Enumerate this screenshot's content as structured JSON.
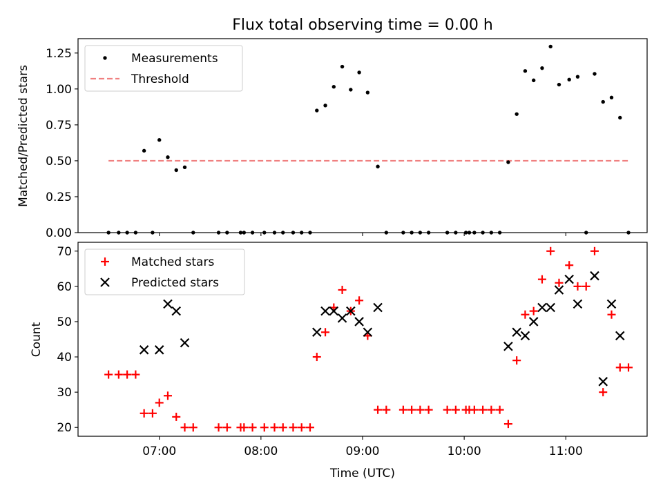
{
  "figure_title": "Flux total observing time = 0.00 h",
  "chart_data": [
    {
      "type": "scatter",
      "ylabel": "Matched/Predicted stars",
      "ylim": [
        0,
        1.35
      ],
      "xlim": [
        "06:12",
        "11:48"
      ],
      "yticks": [
        0.0,
        0.25,
        0.5,
        0.75,
        1.0,
        1.25
      ],
      "ytick_labels": [
        "0.00",
        "0.25",
        "0.50",
        "0.75",
        "1.00",
        "1.25"
      ],
      "legend_position": "upper-left",
      "colors": {
        "measurements": "#000000",
        "threshold": "#f08080"
      },
      "series": [
        {
          "name": "Measurements",
          "marker": "dot",
          "points": [
            [
              "06:30",
              0
            ],
            [
              "06:36",
              0
            ],
            [
              "06:41",
              0
            ],
            [
              "06:46",
              0
            ],
            [
              "06:51",
              0.57
            ],
            [
              "06:56",
              0
            ],
            [
              "07:00",
              0.645
            ],
            [
              "07:05",
              0.525
            ],
            [
              "07:10",
              0.435
            ],
            [
              "07:15",
              0.455
            ],
            [
              "07:20",
              0
            ],
            [
              "07:35",
              0
            ],
            [
              "07:40",
              0
            ],
            [
              "07:48",
              0
            ],
            [
              "07:50",
              0
            ],
            [
              "07:55",
              0
            ],
            [
              "08:02",
              0
            ],
            [
              "08:08",
              0
            ],
            [
              "08:13",
              0
            ],
            [
              "08:19",
              0
            ],
            [
              "08:24",
              0
            ],
            [
              "08:29",
              0
            ],
            [
              "08:33",
              0.85
            ],
            [
              "08:38",
              0.885
            ],
            [
              "08:43",
              1.015
            ],
            [
              "08:48",
              1.155
            ],
            [
              "08:53",
              0.995
            ],
            [
              "08:58",
              1.115
            ],
            [
              "09:03",
              0.975
            ],
            [
              "09:09",
              0.46
            ],
            [
              "09:14",
              0
            ],
            [
              "09:24",
              0
            ],
            [
              "09:29",
              0
            ],
            [
              "09:34",
              0
            ],
            [
              "09:39",
              0
            ],
            [
              "09:50",
              0
            ],
            [
              "09:55",
              0
            ],
            [
              "10:01",
              0
            ],
            [
              "10:03",
              0
            ],
            [
              "10:06",
              0
            ],
            [
              "10:11",
              0
            ],
            [
              "10:16",
              0
            ],
            [
              "10:21",
              0
            ],
            [
              "10:26",
              0.49
            ],
            [
              "10:31",
              0.825
            ],
            [
              "10:36",
              1.125
            ],
            [
              "10:41",
              1.06
            ],
            [
              "10:46",
              1.145
            ],
            [
              "10:51",
              1.295
            ],
            [
              "10:56",
              1.03
            ],
            [
              "11:02",
              1.065
            ],
            [
              "11:07",
              1.085
            ],
            [
              "11:12",
              0
            ],
            [
              "11:17",
              1.105
            ],
            [
              "11:22",
              0.91
            ],
            [
              "11:27",
              0.94
            ],
            [
              "11:32",
              0.8
            ],
            [
              "11:37",
              0
            ]
          ]
        },
        {
          "name": "Threshold",
          "marker": "dashed-line",
          "points": [
            [
              "06:30",
              0.5
            ],
            [
              "11:37",
              0.5
            ]
          ]
        }
      ]
    },
    {
      "type": "scatter",
      "xlabel": "Time (UTC)",
      "ylabel": "Count",
      "ylim": [
        17.5,
        72.5
      ],
      "xlim": [
        "06:12",
        "11:48"
      ],
      "yticks": [
        20,
        30,
        40,
        50,
        60,
        70
      ],
      "ytick_labels": [
        "20",
        "30",
        "40",
        "50",
        "60",
        "70"
      ],
      "xticks": [
        "07:00",
        "08:00",
        "09:00",
        "10:00",
        "11:00"
      ],
      "legend_position": "upper-left",
      "colors": {
        "matched": "#ff0000",
        "predicted": "#000000"
      },
      "series": [
        {
          "name": "Matched stars",
          "marker": "plus",
          "points": [
            [
              "06:30",
              35
            ],
            [
              "06:36",
              35
            ],
            [
              "06:41",
              35
            ],
            [
              "06:46",
              35
            ],
            [
              "06:51",
              24
            ],
            [
              "06:56",
              24
            ],
            [
              "07:00",
              27
            ],
            [
              "07:05",
              29
            ],
            [
              "07:10",
              23
            ],
            [
              "07:15",
              20
            ],
            [
              "07:20",
              20
            ],
            [
              "07:35",
              20
            ],
            [
              "07:40",
              20
            ],
            [
              "07:48",
              20
            ],
            [
              "07:50",
              20
            ],
            [
              "07:55",
              20
            ],
            [
              "08:02",
              20
            ],
            [
              "08:08",
              20
            ],
            [
              "08:13",
              20
            ],
            [
              "08:19",
              20
            ],
            [
              "08:24",
              20
            ],
            [
              "08:29",
              20
            ],
            [
              "08:33",
              40
            ],
            [
              "08:38",
              47
            ],
            [
              "08:43",
              54
            ],
            [
              "08:48",
              59
            ],
            [
              "08:53",
              53
            ],
            [
              "08:58",
              56
            ],
            [
              "09:03",
              46
            ],
            [
              "09:09",
              25
            ],
            [
              "09:14",
              25
            ],
            [
              "09:24",
              25
            ],
            [
              "09:29",
              25
            ],
            [
              "09:34",
              25
            ],
            [
              "09:39",
              25
            ],
            [
              "09:50",
              25
            ],
            [
              "09:55",
              25
            ],
            [
              "10:01",
              25
            ],
            [
              "10:03",
              25
            ],
            [
              "10:06",
              25
            ],
            [
              "10:11",
              25
            ],
            [
              "10:16",
              25
            ],
            [
              "10:21",
              25
            ],
            [
              "10:26",
              21
            ],
            [
              "10:31",
              39
            ],
            [
              "10:36",
              52
            ],
            [
              "10:41",
              53
            ],
            [
              "10:46",
              62
            ],
            [
              "10:51",
              70
            ],
            [
              "10:56",
              61
            ],
            [
              "11:02",
              66
            ],
            [
              "11:07",
              60
            ],
            [
              "11:12",
              60
            ],
            [
              "11:17",
              70
            ],
            [
              "11:22",
              30
            ],
            [
              "11:27",
              52
            ],
            [
              "11:32",
              37
            ],
            [
              "11:37",
              37
            ]
          ]
        },
        {
          "name": "Predicted stars",
          "marker": "x",
          "points": [
            [
              "06:51",
              42
            ],
            [
              "07:00",
              42
            ],
            [
              "07:05",
              55
            ],
            [
              "07:10",
              53
            ],
            [
              "07:15",
              44
            ],
            [
              "08:33",
              47
            ],
            [
              "08:38",
              53
            ],
            [
              "08:43",
              53
            ],
            [
              "08:48",
              51
            ],
            [
              "08:53",
              53
            ],
            [
              "08:58",
              50
            ],
            [
              "09:03",
              47
            ],
            [
              "09:09",
              54
            ],
            [
              "10:26",
              43
            ],
            [
              "10:31",
              47
            ],
            [
              "10:36",
              46
            ],
            [
              "10:41",
              50
            ],
            [
              "10:46",
              54
            ],
            [
              "10:51",
              54
            ],
            [
              "10:56",
              59
            ],
            [
              "11:02",
              62
            ],
            [
              "11:07",
              55
            ],
            [
              "11:17",
              63
            ],
            [
              "11:22",
              33
            ],
            [
              "11:27",
              55
            ],
            [
              "11:32",
              46
            ]
          ]
        }
      ]
    }
  ]
}
